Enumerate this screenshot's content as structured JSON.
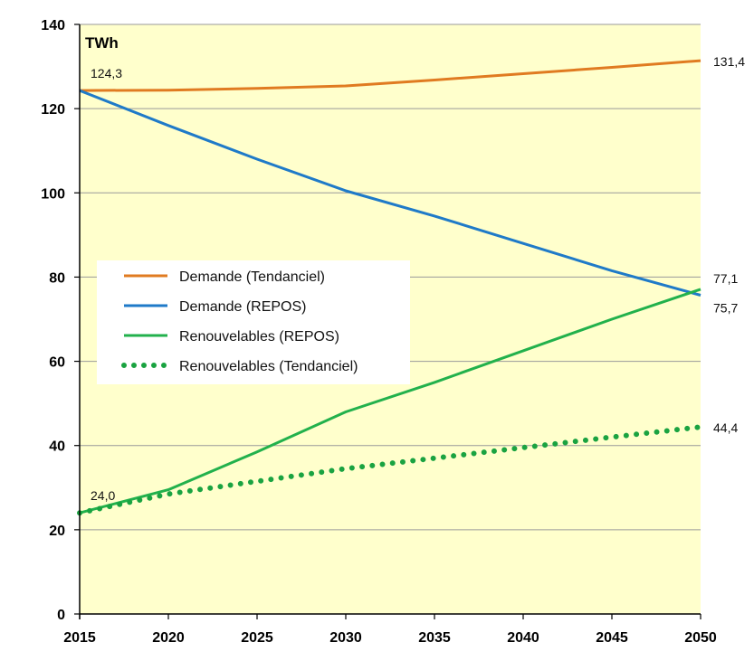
{
  "chart_data": {
    "type": "line",
    "unit_label": "TWh",
    "ylim": [
      0,
      140
    ],
    "y_ticks": [
      0,
      20,
      40,
      60,
      80,
      100,
      120,
      140
    ],
    "xlim": [
      2015,
      2050
    ],
    "x_ticks": [
      2015,
      2020,
      2025,
      2030,
      2035,
      2040,
      2045,
      2050
    ],
    "grid": "horizontal",
    "plot_background": "#ffffcc",
    "legend_placement": "center-left",
    "series": [
      {
        "name": "Demande (Tendanciel)",
        "color": "#e07b21",
        "style": "solid",
        "x": [
          2015,
          2020,
          2025,
          2030,
          2035,
          2040,
          2045,
          2050
        ],
        "y": [
          124.3,
          124.4,
          124.8,
          125.4,
          126.8,
          128.3,
          129.8,
          131.4
        ]
      },
      {
        "name": "Demande (REPOS)",
        "color": "#1f7ac8",
        "style": "solid",
        "x": [
          2015,
          2020,
          2025,
          2030,
          2035,
          2040,
          2045,
          2050
        ],
        "y": [
          124.3,
          116.0,
          108.0,
          100.5,
          94.5,
          88.0,
          81.5,
          75.7
        ]
      },
      {
        "name": "Renouvelables (REPOS)",
        "color": "#22b14c",
        "style": "solid",
        "x": [
          2015,
          2020,
          2025,
          2030,
          2035,
          2040,
          2045,
          2050
        ],
        "y": [
          24.0,
          29.5,
          38.5,
          48.0,
          55.0,
          62.5,
          70.0,
          77.1
        ]
      },
      {
        "name": "Renouvelables (Tendanciel)",
        "color": "#1aa341",
        "style": "dotted",
        "x": [
          2015,
          2020,
          2025,
          2030,
          2035,
          2040,
          2045,
          2050
        ],
        "y": [
          24.0,
          28.5,
          31.5,
          34.5,
          37.0,
          39.5,
          42.0,
          44.4
        ]
      }
    ],
    "data_labels": [
      {
        "text": "124,3",
        "x": 2015,
        "y": 124.3,
        "anchor": "above-right"
      },
      {
        "text": "131,4",
        "x": 2050,
        "y": 131.4,
        "anchor": "right"
      },
      {
        "text": "77,1",
        "x": 2050,
        "y": 77.1,
        "anchor": "right-above"
      },
      {
        "text": "75,7",
        "x": 2050,
        "y": 75.7,
        "anchor": "right-below"
      },
      {
        "text": "44,4",
        "x": 2050,
        "y": 44.4,
        "anchor": "right"
      },
      {
        "text": "24,0",
        "x": 2015,
        "y": 24.0,
        "anchor": "above-right"
      }
    ]
  }
}
